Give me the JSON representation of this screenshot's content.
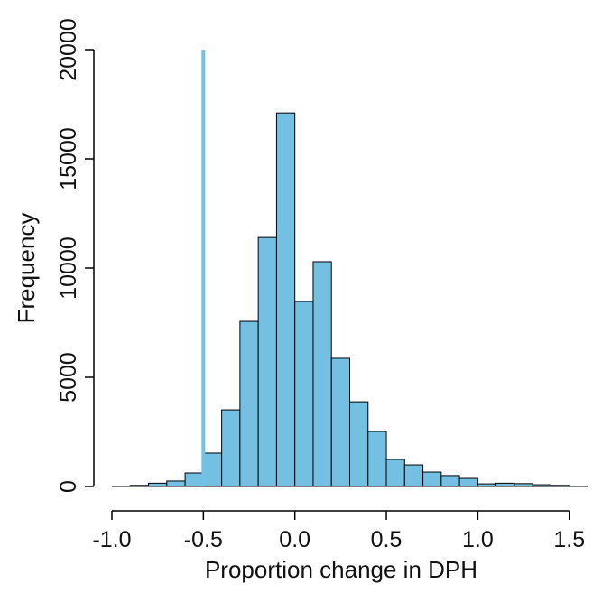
{
  "chart_data": {
    "type": "histogram",
    "x_label": "Proportion change in DPH",
    "y_label": "Frequency",
    "bins": [
      -0.9,
      -0.8,
      -0.7,
      -0.6,
      -0.5,
      -0.4,
      -0.3,
      -0.2,
      -0.1,
      0.0,
      0.1,
      0.2,
      0.3,
      0.4,
      0.5,
      0.6,
      0.7,
      0.8,
      0.9,
      1.0,
      1.1,
      1.2,
      1.3,
      1.4,
      1.5,
      1.6
    ],
    "counts": [
      50,
      150,
      250,
      620,
      1530,
      3510,
      7560,
      11400,
      17100,
      8470,
      10290,
      5870,
      3880,
      2520,
      1240,
      990,
      660,
      500,
      370,
      120,
      150,
      130,
      80,
      50,
      20
    ],
    "color": "#74c0e3",
    "xlim": [
      -1.0,
      1.6
    ],
    "ylim": [
      0,
      20000
    ],
    "xticks": [
      {
        "value": -1.0,
        "label": "-1.0"
      },
      {
        "value": -0.5,
        "label": "-0.5"
      },
      {
        "value": 0.0,
        "label": "0.0"
      },
      0.5,
      {
        "value": 1.0,
        "label": "1.0"
      },
      1.5
    ],
    "yticks": [
      0,
      5000,
      10000,
      15000,
      20000
    ],
    "vline": {
      "x": -0.5,
      "color": "#6ec3e6"
    }
  }
}
